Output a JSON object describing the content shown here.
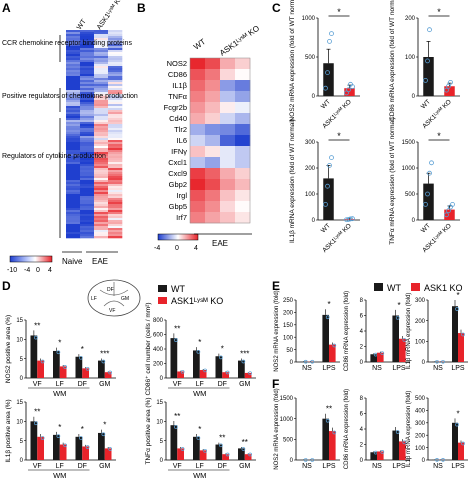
{
  "colors": {
    "wt": "#1a1a1a",
    "ko": "#e8232a",
    "point": "#5a9fd4",
    "heat_low": "#1f3fcf",
    "heat_mid": "#ffffff",
    "heat_high": "#e8232a"
  },
  "panels": {
    "A": {
      "label": "A",
      "columns": [
        "WT",
        "ASK1ᴸʸˢᴹ KO"
      ],
      "groups": [
        "Naive",
        "EAE"
      ],
      "categories": [
        "CCR chemokine receptor binding proteins",
        "Positive regulators of chemokine production",
        "Regulators of cytokine production"
      ],
      "colorbar_ticks": [
        "-10",
        "-4",
        "0",
        "4"
      ]
    },
    "B": {
      "label": "B",
      "columns": [
        "WT",
        "ASK1ᴸʸˢᴹ KO"
      ],
      "group": "EAE",
      "genes": [
        "NOS2",
        "CD86",
        "IL1β",
        "TNFα",
        "Fcgr2b",
        "Cd40",
        "Tlr2",
        "IL6",
        "IFNγ",
        "Cxcl1",
        "Cxcl9",
        "Gbp2",
        "Irgl",
        "Gbp5",
        "Irf7"
      ],
      "heat": [
        [
          0.9,
          0.3
        ],
        [
          0.7,
          0.1
        ],
        [
          0.6,
          -0.6
        ],
        [
          0.5,
          -0.4
        ],
        [
          0.4,
          0.0
        ],
        [
          0.3,
          -0.3
        ],
        [
          -0.5,
          -0.7
        ],
        [
          -0.3,
          -0.9
        ],
        [
          0.2,
          -0.2
        ],
        [
          -0.4,
          -0.2
        ],
        [
          0.8,
          0.3
        ],
        [
          0.9,
          0.4
        ],
        [
          0.7,
          0.2
        ],
        [
          0.6,
          0.1
        ],
        [
          0.5,
          0.2
        ]
      ],
      "colorbar_ticks": [
        "-4",
        "0",
        "4"
      ]
    },
    "C": {
      "label": "C",
      "charts": [
        {
          "ylabel": "NOS2 mRNA expression (fold of WT normal)",
          "categories": [
            "WT",
            "ASK1ᴸʸˢᴹ KO"
          ],
          "values": [
            420,
            100
          ],
          "errors": [
            180,
            40
          ],
          "points": [
            [
              100,
              300,
              700,
              800
            ],
            [
              40,
              80,
              150,
              120
            ]
          ],
          "ylim": [
            0,
            1000
          ],
          "yticks": [
            "0",
            "500",
            "1000"
          ],
          "sig": "*"
        },
        {
          "ylabel": "CD86 mRNA expression (fold of WT normal)",
          "categories": [
            "WT",
            "ASK1ᴸʸˢᴹ KO"
          ],
          "values": [
            100,
            25
          ],
          "errors": [
            40,
            8
          ],
          "points": [
            [
              40,
              90,
              170
            ],
            [
              15,
              25,
              35
            ]
          ],
          "ylim": [
            0,
            200
          ],
          "yticks": [
            "0",
            "100",
            "200"
          ],
          "sig": "*"
        },
        {
          "ylabel": "IL1β mRNA expression (fold of WT normal)",
          "categories": [
            "WT",
            "ASK1ᴸʸˢᴹ KO"
          ],
          "values": [
            160,
            3
          ],
          "errors": [
            50,
            2
          ],
          "points": [
            [
              60,
              130,
              210,
              240
            ],
            [
              1,
              2,
              4,
              5
            ]
          ],
          "ylim": [
            0,
            300
          ],
          "yticks": [
            "0",
            "100",
            "200",
            "300"
          ],
          "sig": "*"
        },
        {
          "ylabel": "TNFα mRNA expression (fold of WT normal)",
          "categories": [
            "WT",
            "ASK1ᴸʸˢᴹ KO"
          ],
          "values": [
            700,
            200
          ],
          "errors": [
            200,
            70
          ],
          "points": [
            [
              300,
              500,
              900,
              1100
            ],
            [
              100,
              180,
              250,
              300
            ]
          ],
          "ylim": [
            0,
            1500
          ],
          "yticks": [
            "0",
            "500",
            "1000",
            "1500"
          ],
          "sig": "*"
        }
      ]
    },
    "D": {
      "label": "D",
      "legend": [
        "WT",
        "ASK1ᴸʸˢᴹ KO"
      ],
      "group_label": "WM",
      "inset_labels": [
        "DF",
        "LF",
        "GM",
        "VF"
      ],
      "charts": [
        {
          "ylabel": "NOS2 positive area (%)",
          "categories": [
            "VF",
            "LF",
            "DF",
            "GM"
          ],
          "series": [
            {
              "values": [
                11,
                7,
                5.5,
                4.5
              ]
            },
            {
              "values": [
                4.5,
                3,
                2.5,
                1.5
              ]
            }
          ],
          "ylim": [
            0,
            15
          ],
          "yticks": [
            "0",
            "5",
            "10",
            "15"
          ],
          "sig": [
            "**",
            "*",
            "*",
            "***"
          ]
        },
        {
          "ylabel": "CD86⁺ cell number (cells / mm²)",
          "categories": [
            "VF",
            "LF",
            "DF",
            "GM"
          ],
          "series": [
            {
              "values": [
                550,
                380,
                300,
                240
              ]
            },
            {
              "values": [
                90,
                110,
                80,
                70
              ]
            }
          ],
          "ylim": [
            0,
            800
          ],
          "yticks": [
            "0",
            "200",
            "400",
            "600",
            "800"
          ],
          "sig": [
            "**",
            "*",
            "*",
            "***"
          ]
        },
        {
          "ylabel": "IL1β positive area (%)",
          "categories": [
            "VF",
            "LF",
            "DF",
            "GM"
          ],
          "series": [
            {
              "values": [
                10,
                6.5,
                6,
                7
              ]
            },
            {
              "values": [
                6,
                4,
                3.5,
                3
              ]
            }
          ],
          "ylim": [
            0,
            15
          ],
          "yticks": [
            "0",
            "5",
            "10",
            "15"
          ],
          "sig": [
            "**",
            "*",
            "*",
            "*"
          ]
        },
        {
          "ylabel": "TNFα positive area (%)",
          "categories": [
            "VF",
            "LF",
            "DF",
            "GM"
          ],
          "series": [
            {
              "values": [
                9,
                6,
                4,
                3
              ]
            },
            {
              "values": [
                3,
                2.5,
                1.5,
                1.5
              ]
            }
          ],
          "ylim": [
            0,
            15
          ],
          "yticks": [
            "0",
            "5",
            "10",
            "15"
          ],
          "sig": [
            "**",
            "*",
            "**",
            "**"
          ]
        }
      ]
    },
    "E": {
      "label": "E",
      "legend": [
        "WT",
        "ASK1 KO"
      ],
      "charts": [
        {
          "ylabel": "NOS2 mRNA expression (fold)",
          "categories": [
            "NS",
            "LPS"
          ],
          "series": [
            {
              "values": [
                1,
                190
              ]
            },
            {
              "values": [
                1,
                70
              ]
            }
          ],
          "ylim": [
            0,
            250
          ],
          "yticks": [
            "0",
            "50",
            "100",
            "150",
            "200",
            "250"
          ],
          "sig": "*"
        },
        {
          "ylabel": "CD86 mRNA expression (fold)",
          "categories": [
            "NS",
            "LPS"
          ],
          "series": [
            {
              "values": [
                1,
                6
              ]
            },
            {
              "values": [
                1.2,
                3
              ]
            }
          ],
          "ylim": [
            0,
            8
          ],
          "yticks": [
            "0",
            "2",
            "4",
            "6",
            "8"
          ],
          "sig": "*"
        },
        {
          "ylabel": "IL1β mRNA expression (fold)",
          "categories": [
            "NS",
            "LPS"
          ],
          "series": [
            {
              "values": [
                1,
                270
              ]
            },
            {
              "values": [
                1,
                140
              ]
            }
          ],
          "ylim": [
            0,
            300
          ],
          "yticks": [
            "0",
            "100",
            "200",
            "300"
          ],
          "sig": "*"
        }
      ]
    },
    "F": {
      "label": "F",
      "charts": [
        {
          "ylabel": "NOS2 mRNA expression (fold)",
          "categories": [
            "NS",
            "LPS"
          ],
          "series": [
            {
              "values": [
                1,
                1000
              ]
            },
            {
              "values": [
                1,
                700
              ]
            }
          ],
          "ylim": [
            0,
            1500
          ],
          "yticks": [
            "0",
            "500",
            "1000",
            "1500"
          ],
          "sig": "**"
        },
        {
          "ylabel": "CD86 mRNA expression (fold)",
          "categories": [
            "NS",
            "LPS"
          ],
          "series": [
            {
              "values": [
                1,
                3.8
              ]
            },
            {
              "values": [
                1.1,
                2.4
              ]
            }
          ],
          "ylim": [
            0,
            8
          ],
          "yticks": [
            "0",
            "2",
            "4",
            "6",
            "8"
          ],
          "sig": ""
        },
        {
          "ylabel": "IL1β mRNA expression (fold)",
          "categories": [
            "NS",
            "LPS"
          ],
          "series": [
            {
              "values": [
                1,
                300
              ]
            },
            {
              "values": [
                1,
                140
              ]
            }
          ],
          "ylim": [
            0,
            500
          ],
          "yticks": [
            "0",
            "100",
            "200",
            "300",
            "400",
            "500"
          ],
          "sig": "*"
        }
      ]
    }
  },
  "chart_data": [
    {
      "panel": "C",
      "type": "bar",
      "categories": [
        "WT",
        "ASK1ᴸʸˢᴹ KO"
      ],
      "series": [
        {
          "name": "NOS2",
          "values": [
            420,
            100
          ]
        },
        {
          "name": "CD86",
          "values": [
            100,
            25
          ]
        },
        {
          "name": "IL1β",
          "values": [
            160,
            3
          ]
        },
        {
          "name": "TNFα",
          "values": [
            700,
            200
          ]
        }
      ]
    },
    {
      "panel": "D",
      "type": "bar",
      "categories": [
        "VF",
        "LF",
        "DF",
        "GM"
      ],
      "series": [
        {
          "name": "WT",
          "values": [
            11,
            7,
            5.5,
            4.5
          ]
        },
        {
          "name": "ASK1ᴸʸˢᴹ KO",
          "values": [
            4.5,
            3,
            2.5,
            1.5
          ]
        }
      ]
    },
    {
      "panel": "E",
      "type": "bar",
      "categories": [
        "NS",
        "LPS"
      ],
      "series": [
        {
          "name": "WT",
          "values": [
            1,
            190
          ]
        },
        {
          "name": "ASK1 KO",
          "values": [
            1,
            70
          ]
        }
      ]
    },
    {
      "panel": "F",
      "type": "bar",
      "categories": [
        "NS",
        "LPS"
      ],
      "series": [
        {
          "name": "WT",
          "values": [
            1,
            1000
          ]
        },
        {
          "name": "ASK1 KO",
          "values": [
            1,
            700
          ]
        }
      ]
    }
  ]
}
